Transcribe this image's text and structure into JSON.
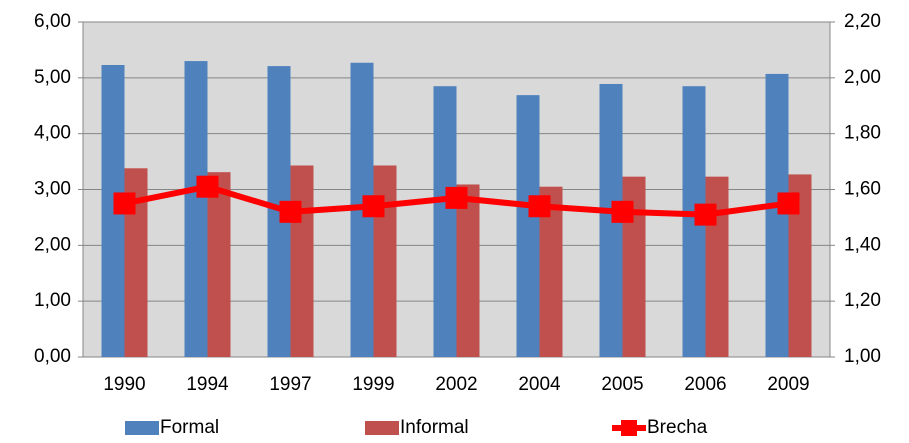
{
  "chart_data": {
    "type": "bar",
    "categories": [
      "1990",
      "1994",
      "1997",
      "1999",
      "2002",
      "2004",
      "2005",
      "2006",
      "2009"
    ],
    "series": [
      {
        "name": "Formal",
        "color": "#4f81bd",
        "values": [
          5.23,
          5.3,
          5.21,
          5.27,
          4.85,
          4.69,
          4.89,
          4.85,
          5.07
        ]
      },
      {
        "name": "Informal",
        "color": "#c0504d",
        "values": [
          3.38,
          3.31,
          3.43,
          3.43,
          3.09,
          3.05,
          3.23,
          3.23,
          3.27
        ]
      },
      {
        "name": "Brecha",
        "color": "#ff0000",
        "type": "line",
        "axis": "y2",
        "values": [
          1.55,
          1.61,
          1.52,
          1.54,
          1.57,
          1.54,
          1.52,
          1.51,
          1.55
        ]
      }
    ],
    "ylim": [
      0,
      6
    ],
    "yticks": [
      {
        "value": 0,
        "label": "0,00"
      },
      {
        "value": 1,
        "label": "1,00"
      },
      {
        "value": 2,
        "label": "2,00"
      },
      {
        "value": 3,
        "label": "3,00"
      },
      {
        "value": 4,
        "label": "4,00"
      },
      {
        "value": 5,
        "label": "5,00"
      },
      {
        "value": 6,
        "label": "6,00"
      }
    ],
    "y2lim": [
      1,
      2.2
    ],
    "y2ticks": [
      {
        "value": 1,
        "label": "1,00"
      },
      {
        "value": 1.2,
        "label": "1,20"
      },
      {
        "value": 1.4,
        "label": "1,40"
      },
      {
        "value": 1.6,
        "label": "1,60"
      },
      {
        "value": 1.8,
        "label": "1,80"
      },
      {
        "value": 2,
        "label": "2,00"
      },
      {
        "value": 2.2,
        "label": "2,20"
      }
    ],
    "grid": true,
    "legend": "bottom"
  }
}
